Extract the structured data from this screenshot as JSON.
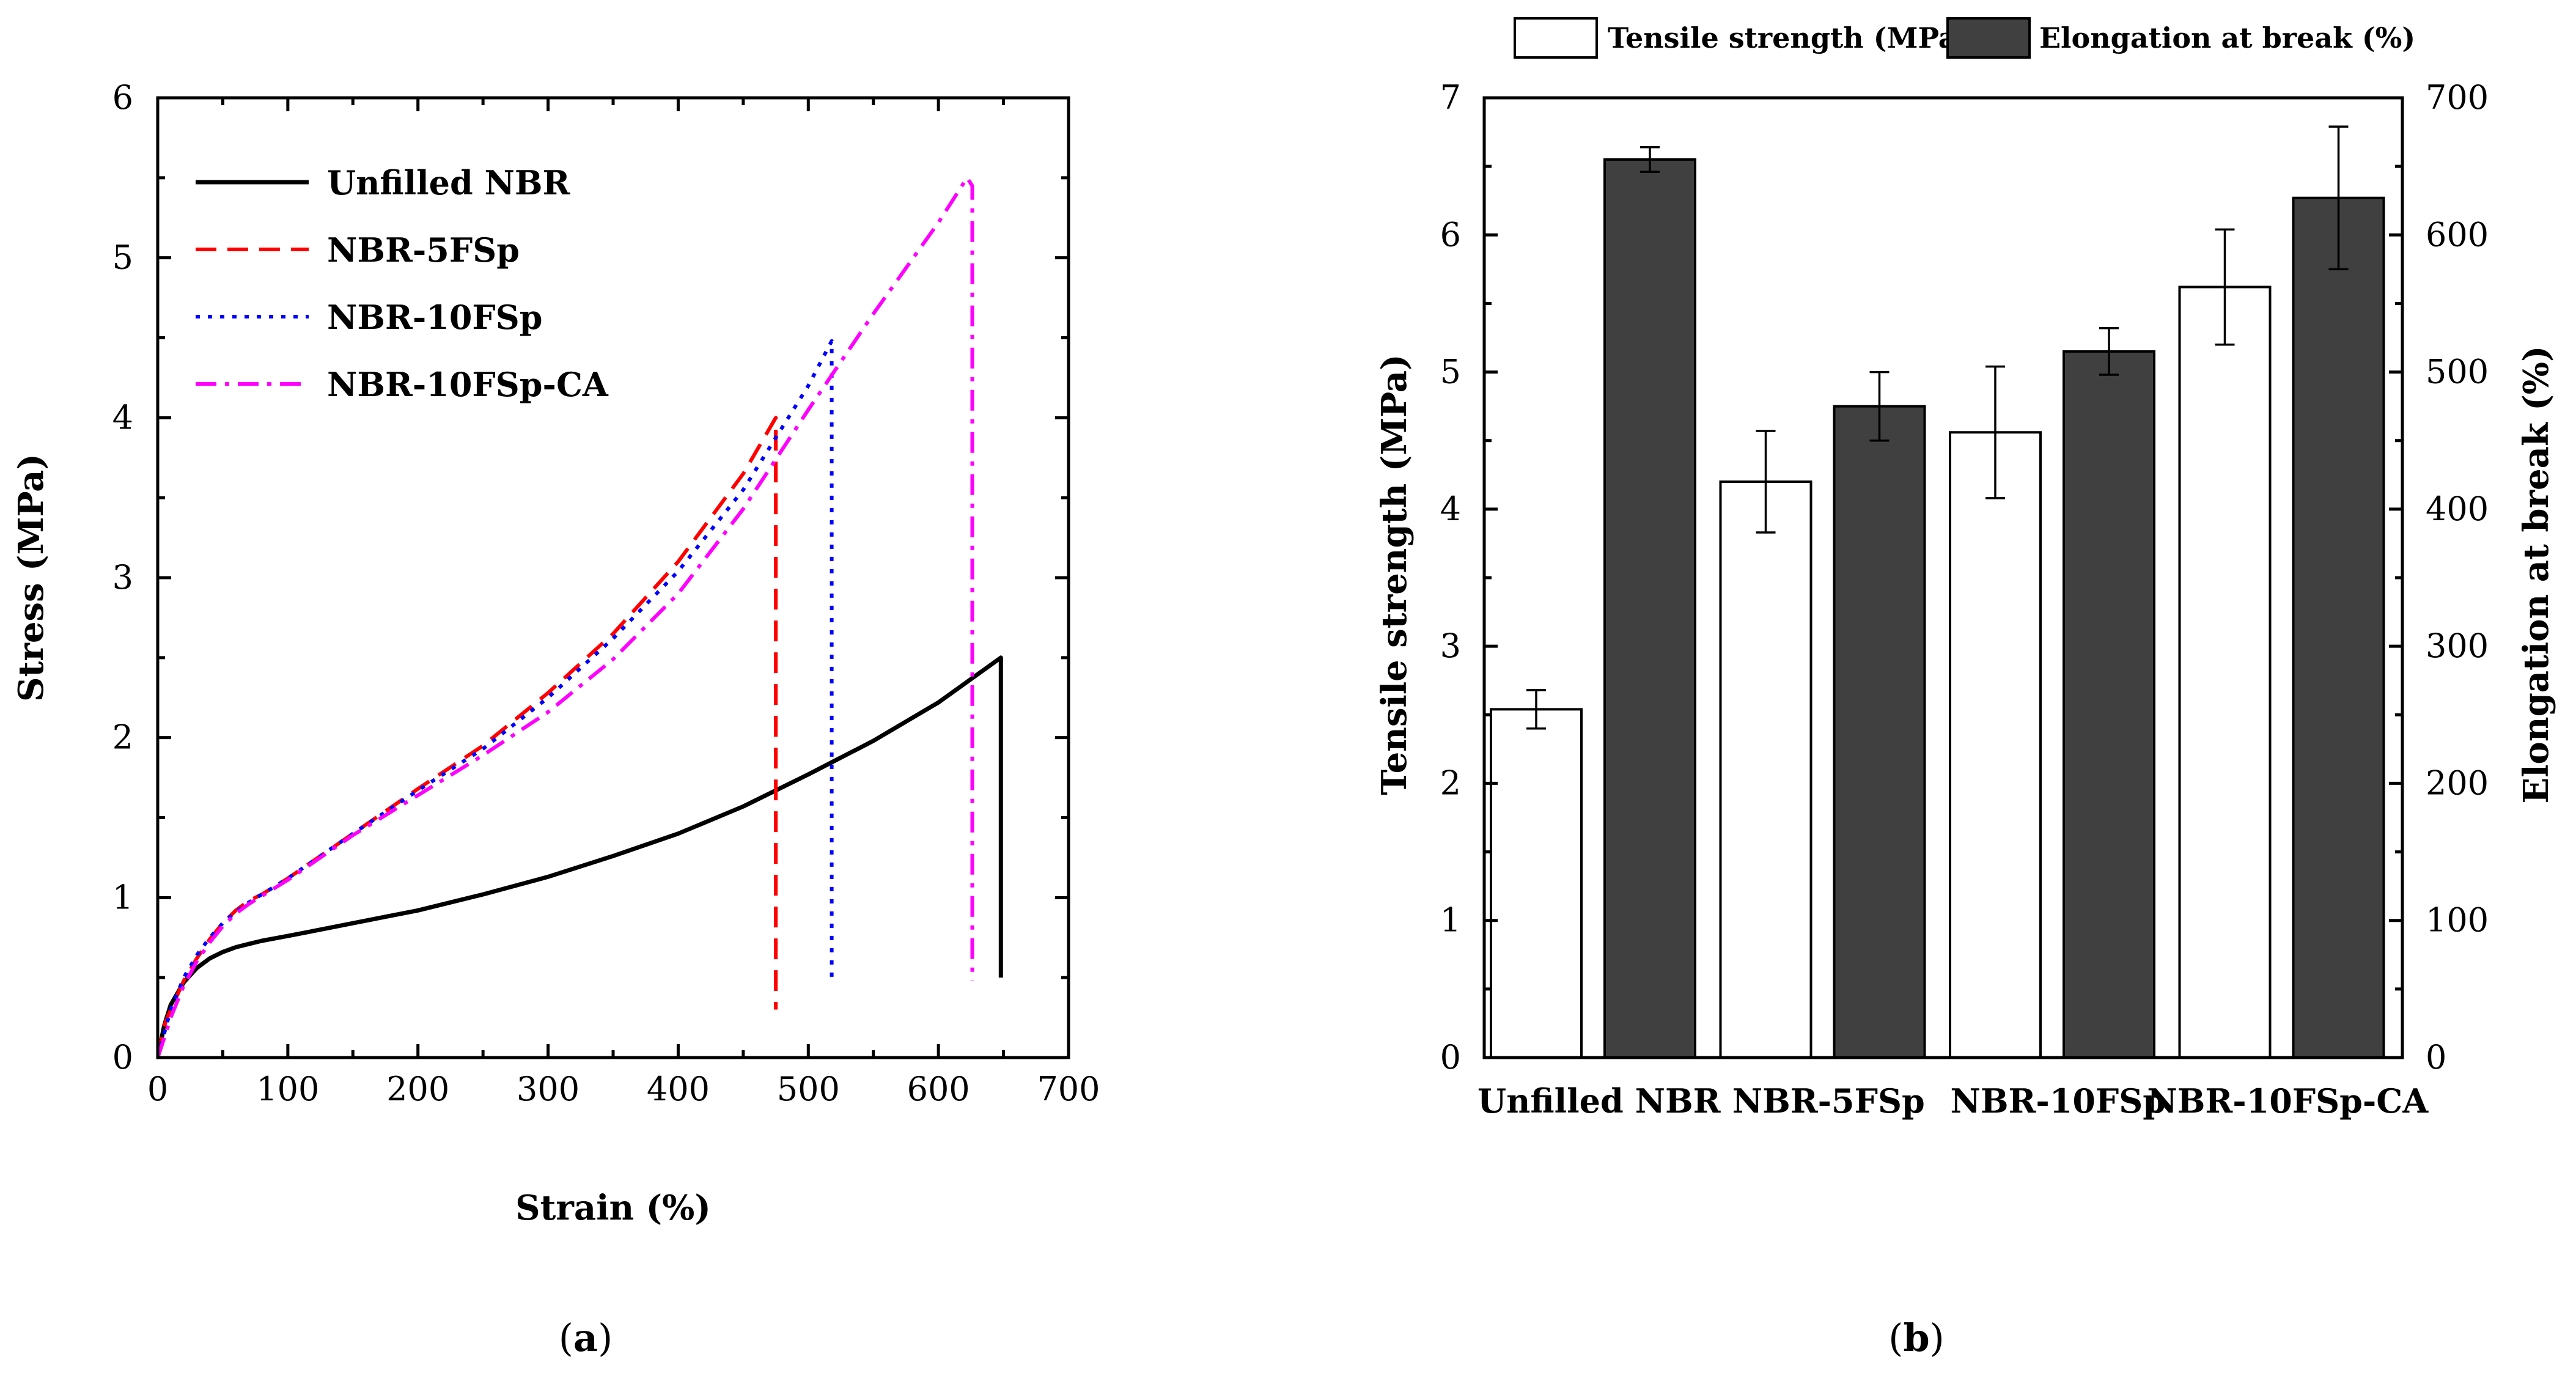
{
  "chart_data": [
    {
      "type": "line",
      "panel": "(a)",
      "panel_label_letter": "a",
      "title": "",
      "xlabel": "Strain (%)",
      "ylabel": "Stress (MPa)",
      "xlim": [
        0,
        700
      ],
      "ylim": [
        0,
        6
      ],
      "xticks": [
        0,
        100,
        200,
        300,
        400,
        500,
        600,
        700
      ],
      "yticks": [
        0,
        1,
        2,
        3,
        4,
        5,
        6
      ],
      "legend_position": "top-left",
      "series": [
        {
          "name": "Unfilled NBR",
          "color": "#000000",
          "dash": "solid",
          "x": [
            0,
            5,
            10,
            20,
            30,
            40,
            50,
            60,
            70,
            80,
            100,
            125,
            150,
            175,
            200,
            250,
            300,
            350,
            400,
            450,
            500,
            550,
            600,
            648,
            648
          ],
          "y": [
            0,
            0.2,
            0.33,
            0.47,
            0.56,
            0.62,
            0.66,
            0.69,
            0.71,
            0.73,
            0.76,
            0.8,
            0.84,
            0.88,
            0.92,
            1.02,
            1.13,
            1.26,
            1.4,
            1.57,
            1.77,
            1.98,
            2.22,
            2.5,
            0.5
          ]
        },
        {
          "name": "NBR-5FSp",
          "color": "#ff0000",
          "dash": "dashed",
          "x": [
            0,
            5,
            10,
            20,
            30,
            40,
            50,
            60,
            70,
            80,
            100,
            150,
            200,
            250,
            300,
            350,
            400,
            450,
            475,
            475
          ],
          "y": [
            0,
            0.2,
            0.3,
            0.48,
            0.62,
            0.74,
            0.84,
            0.92,
            0.98,
            1.02,
            1.12,
            1.4,
            1.68,
            1.95,
            2.28,
            2.65,
            3.1,
            3.65,
            4.0,
            0.3
          ]
        },
        {
          "name": "NBR-10FSp",
          "color": "#0000ff",
          "dash": "dotted",
          "x": [
            0,
            5,
            10,
            20,
            30,
            40,
            50,
            60,
            70,
            80,
            100,
            150,
            200,
            250,
            300,
            350,
            400,
            450,
            500,
            518,
            518
          ],
          "y": [
            0,
            0.15,
            0.3,
            0.5,
            0.64,
            0.75,
            0.84,
            0.91,
            0.97,
            1.02,
            1.12,
            1.4,
            1.67,
            1.93,
            2.25,
            2.62,
            3.04,
            3.55,
            4.2,
            4.48,
            0.48
          ]
        },
        {
          "name": "NBR-10FSp-CA",
          "color": "#ff00ff",
          "dash": "dashdot",
          "x": [
            0,
            5,
            10,
            20,
            30,
            40,
            50,
            60,
            70,
            80,
            100,
            150,
            200,
            250,
            300,
            350,
            400,
            450,
            500,
            550,
            600,
            622,
            626,
            626
          ],
          "y": [
            0,
            0.12,
            0.25,
            0.45,
            0.6,
            0.72,
            0.82,
            0.9,
            0.96,
            1.01,
            1.11,
            1.39,
            1.64,
            1.89,
            2.16,
            2.49,
            2.9,
            3.43,
            4.05,
            4.65,
            5.22,
            5.5,
            5.45,
            0.48
          ]
        }
      ]
    },
    {
      "type": "bar",
      "panel": "(b)",
      "panel_label_letter": "b",
      "title": "",
      "xlabel": "",
      "categories": [
        "Unfilled NBR",
        "NBR-5FSp",
        "NBR-10FSp",
        "NBR-10FSp-CA"
      ],
      "ylabel_left": "Tensile strength (MPa)",
      "ylabel_right": "Elongation at break (%)",
      "ylim_left": [
        0,
        7
      ],
      "ylim_right": [
        0,
        700
      ],
      "yticks_left": [
        0,
        1,
        2,
        3,
        4,
        5,
        6,
        7
      ],
      "yticks_right": [
        0,
        100,
        200,
        300,
        400,
        500,
        600,
        700
      ],
      "legend_position": "top-outside",
      "series": [
        {
          "name": "Tensile strength (MPa)",
          "axis": "left",
          "fill": "#ffffff",
          "values": [
            2.54,
            4.2,
            4.56,
            5.62
          ],
          "errors": [
            0.14,
            0.37,
            0.48,
            0.42
          ]
        },
        {
          "name": "Elongation at break (%)",
          "axis": "right",
          "fill": "#404040",
          "values": [
            655,
            475,
            515,
            627
          ],
          "errors": [
            9,
            25,
            17,
            52
          ]
        }
      ]
    }
  ]
}
